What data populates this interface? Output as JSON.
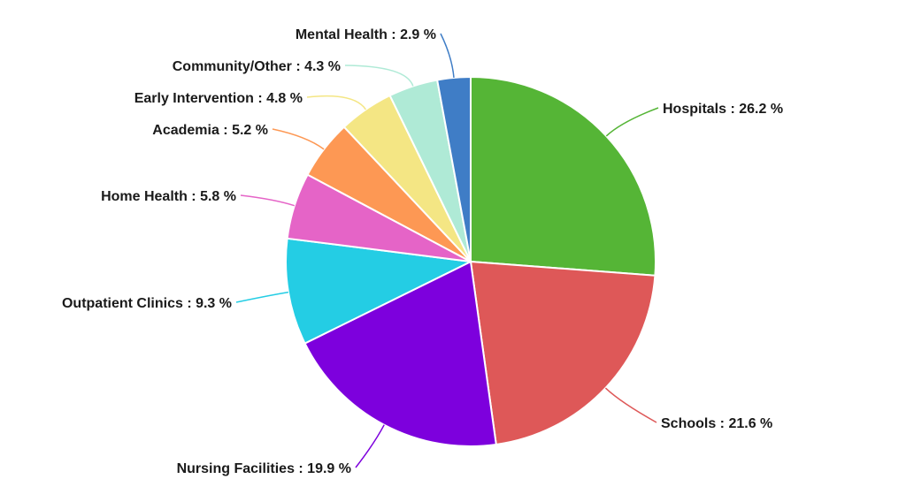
{
  "chart_data": {
    "type": "pie",
    "start_angle_deg": 0,
    "direction": "clockwise",
    "slices": [
      {
        "label": "Hospitals",
        "value": 26.2,
        "text": "Hospitals : 26.2 %",
        "color": "#55b536"
      },
      {
        "label": "Schools",
        "value": 21.6,
        "text": "Schools : 21.6 %",
        "color": "#de5858"
      },
      {
        "label": "Nursing Facilities",
        "value": 19.9,
        "text": "Nursing Facilities : 19.9 %",
        "color": "#7d00dd"
      },
      {
        "label": "Outpatient Clinics",
        "value": 9.3,
        "text": "Outpatient Clinics : 9.3 %",
        "color": "#24cde4"
      },
      {
        "label": "Home Health",
        "value": 5.8,
        "text": "Home Health : 5.8 %",
        "color": "#e564c7"
      },
      {
        "label": "Academia",
        "value": 5.2,
        "text": "Academia : 5.2 %",
        "color": "#fd9854"
      },
      {
        "label": "Early Intervention",
        "value": 4.8,
        "text": "Early Intervention : 4.8 %",
        "color": "#f4e684"
      },
      {
        "label": "Community/Other",
        "value": 4.3,
        "text": "Community/Other : 4.3 %",
        "color": "#afead6"
      },
      {
        "label": "Mental Health",
        "value": 2.9,
        "text": "Mental Health : 2.9 %",
        "color": "#3f7dc6"
      }
    ]
  }
}
